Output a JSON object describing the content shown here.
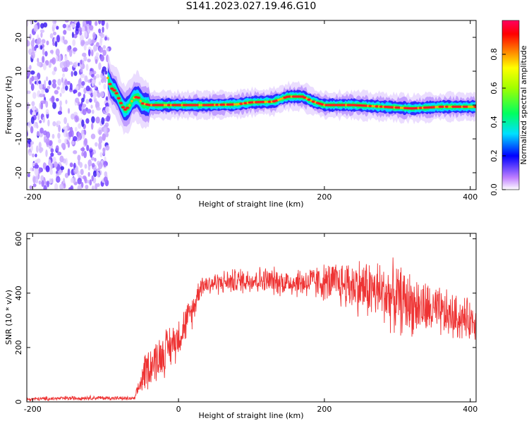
{
  "title": "S141.2023.027.19.46.G10",
  "chart_data": [
    {
      "type": "heatmap",
      "xlabel": "Height of straight line (km)",
      "ylabel": "Frequency (Hz)",
      "xlim": [
        -208,
        408
      ],
      "ylim": [
        -25,
        25
      ],
      "xticks": [
        -200,
        0,
        200,
        400
      ],
      "yticks": [
        -20,
        -10,
        0,
        10,
        20
      ],
      "colorbar": {
        "label": "Normalized spectral amplitude",
        "range": [
          0,
          1
        ],
        "ticks": [
          0.0,
          0.2,
          0.4,
          0.6,
          0.8
        ]
      },
      "noise_region": {
        "x": [
          -208,
          -95
        ],
        "y": [
          -25,
          25
        ]
      },
      "ridge": [
        {
          "x": -97,
          "y": 8
        },
        {
          "x": -92,
          "y": 5
        },
        {
          "x": -86,
          "y": 4
        },
        {
          "x": -80,
          "y": 1
        },
        {
          "x": -74,
          "y": -1.5
        },
        {
          "x": -68,
          "y": -0.5
        },
        {
          "x": -62,
          "y": 2
        },
        {
          "x": -56,
          "y": 2.5
        },
        {
          "x": -50,
          "y": 0.5
        },
        {
          "x": -40,
          "y": 0
        },
        {
          "x": -20,
          "y": 0
        },
        {
          "x": 0,
          "y": 0
        },
        {
          "x": 40,
          "y": 0
        },
        {
          "x": 80,
          "y": 0.2
        },
        {
          "x": 100,
          "y": 0.8
        },
        {
          "x": 130,
          "y": 1
        },
        {
          "x": 150,
          "y": 2.5
        },
        {
          "x": 170,
          "y": 2.5
        },
        {
          "x": 185,
          "y": 1
        },
        {
          "x": 200,
          "y": 0
        },
        {
          "x": 240,
          "y": 0
        },
        {
          "x": 280,
          "y": -0.5
        },
        {
          "x": 320,
          "y": -1
        },
        {
          "x": 360,
          "y": -0.5
        },
        {
          "x": 400,
          "y": -0.5
        },
        {
          "x": 408,
          "y": -0.5
        }
      ]
    },
    {
      "type": "line",
      "xlabel": "Height of straight line (km)",
      "ylabel": "SNR (10 * v/v)",
      "xlim": [
        -208,
        408
      ],
      "ylim": [
        0,
        620
      ],
      "xticks": [
        -200,
        0,
        200,
        400
      ],
      "yticks": [
        0,
        200,
        400,
        600
      ],
      "color": "#ee3333",
      "envelope": [
        {
          "x": -208,
          "mean": 10,
          "amp": 8
        },
        {
          "x": -120,
          "mean": 15,
          "amp": 10
        },
        {
          "x": -60,
          "mean": 12,
          "amp": 8
        },
        {
          "x": -45,
          "mean": 120,
          "amp": 90
        },
        {
          "x": -20,
          "mean": 180,
          "amp": 100
        },
        {
          "x": 0,
          "mean": 240,
          "amp": 90
        },
        {
          "x": 20,
          "mean": 340,
          "amp": 70
        },
        {
          "x": 30,
          "mean": 430,
          "amp": 50
        },
        {
          "x": 60,
          "mean": 440,
          "amp": 50
        },
        {
          "x": 100,
          "mean": 450,
          "amp": 60
        },
        {
          "x": 150,
          "mean": 440,
          "amp": 60
        },
        {
          "x": 200,
          "mean": 440,
          "amp": 80
        },
        {
          "x": 240,
          "mean": 430,
          "amp": 120
        },
        {
          "x": 280,
          "mean": 400,
          "amp": 140
        },
        {
          "x": 300,
          "mean": 380,
          "amp": 150
        },
        {
          "x": 340,
          "mean": 340,
          "amp": 120
        },
        {
          "x": 380,
          "mean": 310,
          "amp": 100
        },
        {
          "x": 408,
          "mean": 300,
          "amp": 80
        }
      ]
    }
  ]
}
